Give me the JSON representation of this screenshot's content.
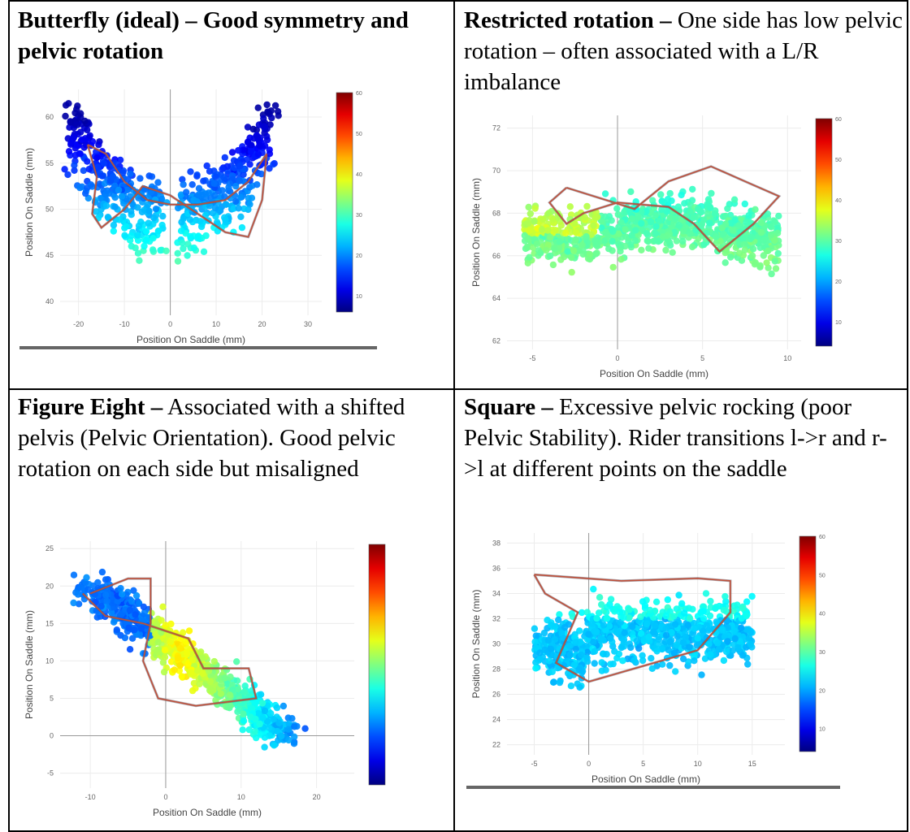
{
  "cells": [
    {
      "bold": "Butterfly (ideal) – Good symmetry and pelvic rotation",
      "text": "",
      "chart_data": {
        "type": "scatter",
        "xlabel": "Position On Saddle (mm)",
        "ylabel": "Position On Saddle (mm)",
        "xlim": [
          -24,
          33
        ],
        "ylim": [
          38.5,
          63
        ],
        "xticks": [
          -20,
          -10,
          0,
          10,
          20,
          30
        ],
        "yticks": [
          40,
          45,
          50,
          55,
          60
        ],
        "colorbar": {
          "min": 6,
          "max": 60,
          "ticks": [
            10,
            20,
            30,
            40,
            50,
            60
          ]
        },
        "pattern": "butterfly",
        "trace_color": "#c0503a"
      }
    },
    {
      "bold": "Restricted rotation –",
      "text": " One side has low pelvic rotation – often associated with a L/R imbalance",
      "chart_data": {
        "type": "scatter",
        "xlabel": "Position On Saddle (mm)",
        "ylabel": "Position On Saddle (mm)",
        "xlim": [
          -6.5,
          10.8
        ],
        "ylim": [
          61.6,
          72.6
        ],
        "xticks": [
          -5,
          0,
          5,
          10
        ],
        "yticks": [
          62,
          64,
          66,
          68,
          70,
          72
        ],
        "colorbar": {
          "min": 4,
          "max": 60,
          "ticks": [
            10,
            20,
            30,
            40,
            50,
            60
          ]
        },
        "pattern": "restricted",
        "trace_color": "#c0503a"
      }
    },
    {
      "bold": "Figure Eight –",
      "text": " Associated with a shifted pelvis (Pelvic Orientation). Good pelvic rotation on each side but misaligned",
      "chart_data": {
        "type": "scatter",
        "xlabel": "Position On Saddle (mm)",
        "ylabel": "Position On Saddle (mm)",
        "xlim": [
          -14,
          25
        ],
        "ylim": [
          -7,
          26
        ],
        "xticks": [
          -10,
          0,
          10,
          20
        ],
        "yticks": [
          -5,
          0,
          5,
          10,
          15,
          20,
          25
        ],
        "colorbar": {
          "min": 0,
          "max": 60,
          "ticks": []
        },
        "pattern": "figure-eight",
        "trace_color": "#c0503a"
      }
    },
    {
      "bold": "Square –",
      "text": " Excessive pelvic rocking (poor Pelvic Stability). Rider transitions l->r and r->l at different points on the saddle",
      "chart_data": {
        "type": "scatter",
        "xlabel": "Position On Saddle (mm)",
        "ylabel": "Position On Saddle (mm)",
        "xlim": [
          -7.5,
          18
        ],
        "ylim": [
          21.2,
          38.8
        ],
        "xticks": [
          -5,
          0,
          5,
          10,
          15
        ],
        "yticks": [
          22,
          24,
          26,
          28,
          30,
          32,
          34,
          36,
          38
        ],
        "colorbar": {
          "min": 4,
          "max": 60,
          "ticks": [
            10,
            20,
            30,
            40,
            50,
            60
          ]
        },
        "pattern": "square",
        "trace_color": "#c0503a"
      }
    }
  ]
}
